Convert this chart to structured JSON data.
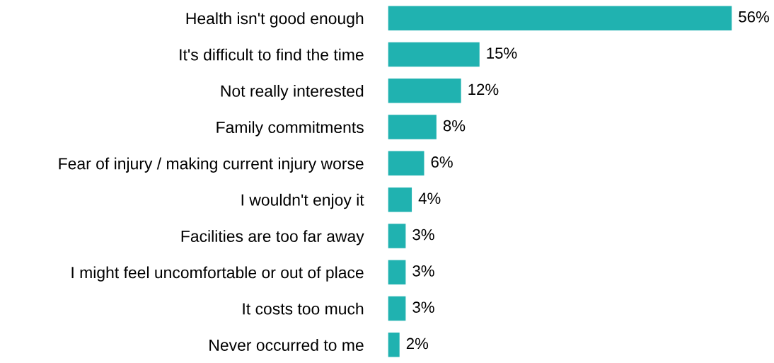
{
  "chart_data": {
    "type": "bar",
    "orientation": "horizontal",
    "categories": [
      "Health isn't good enough",
      "It's difficult to find the time",
      "Not really interested",
      "Family commitments",
      "Fear of injury / making current injury worse",
      "I wouldn't enjoy it",
      "Facilities are too far away",
      "I might feel uncomfortable or out of place",
      "It costs too much",
      "Never occurred to me"
    ],
    "values": [
      56,
      15,
      12,
      8,
      6,
      4,
      3,
      3,
      3,
      2
    ],
    "value_labels": [
      "56%",
      "15%",
      "12%",
      "8%",
      "6%",
      "4%",
      "3%",
      "3%",
      "3%",
      "2%"
    ],
    "color": "#20b2b0"
  }
}
